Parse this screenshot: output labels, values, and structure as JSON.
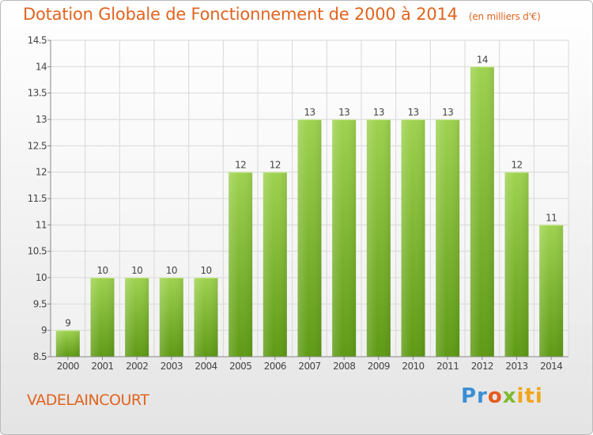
{
  "header": {
    "title": "Dotation Globale de Fonctionnement de 2000 à 2014",
    "unit": "(en milliers d'€)"
  },
  "footer": {
    "commune": "VADELAINCOURT",
    "logo_parts": [
      "Pr",
      "o",
      "x",
      "iti"
    ]
  },
  "colors": {
    "accent": "#e0641f",
    "bar_top": "#9ed24f",
    "bar_bottom": "#5e9a14",
    "grid": "#d8d8d8"
  },
  "chart_data": {
    "type": "bar",
    "title": "Dotation Globale de Fonctionnement de 2000 à 2014",
    "xlabel": "",
    "ylabel": "",
    "categories": [
      "2000",
      "2001",
      "2002",
      "2003",
      "2004",
      "2005",
      "2006",
      "2007",
      "2008",
      "2009",
      "2010",
      "2011",
      "2012",
      "2013",
      "2014"
    ],
    "values": [
      9,
      10,
      10,
      10,
      10,
      12,
      12,
      13,
      13,
      13,
      13,
      13,
      14,
      12,
      11
    ],
    "labels": [
      "9",
      "10",
      "10",
      "10",
      "10",
      "12",
      "12",
      "13",
      "13",
      "13",
      "13",
      "13",
      "14",
      "12",
      "11"
    ],
    "ylim": [
      8.5,
      14.5
    ],
    "yticks": [
      8.5,
      9,
      9.5,
      10,
      10.5,
      11,
      11.5,
      12,
      12.5,
      13,
      13.5,
      14,
      14.5
    ],
    "ytick_labels": [
      "8.5",
      "9",
      "9.5",
      "10",
      "10.5",
      "11",
      "11.5",
      "12",
      "12.5",
      "13",
      "13.5",
      "14",
      "14.5"
    ],
    "grid": true,
    "legend": "none"
  }
}
